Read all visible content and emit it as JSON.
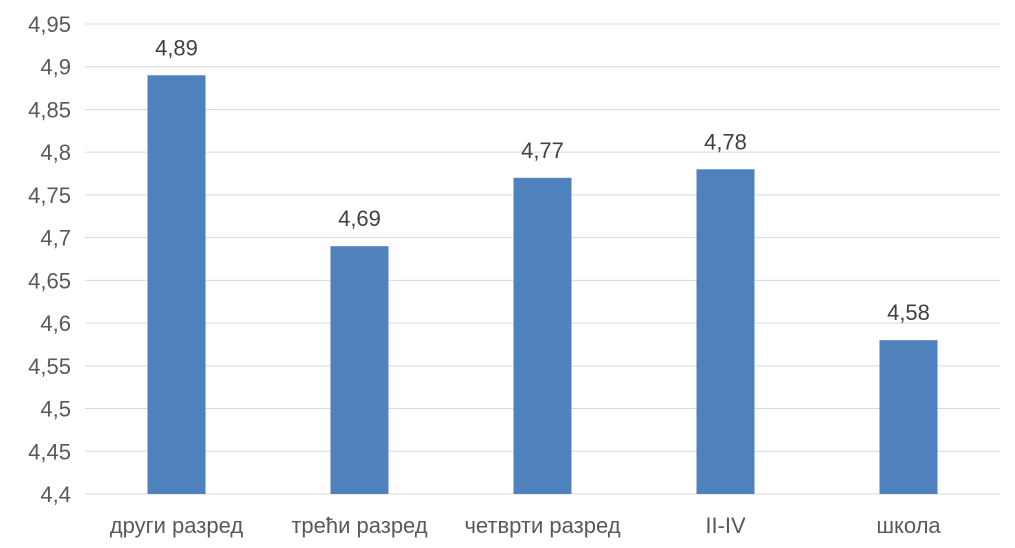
{
  "chart_data": {
    "type": "bar",
    "title": "",
    "xlabel": "",
    "ylabel": "",
    "categories": [
      "други разред",
      "трећи разред",
      "четврти разред",
      "II-IV",
      "школа"
    ],
    "values": [
      4.89,
      4.69,
      4.77,
      4.78,
      4.58
    ],
    "data_labels": [
      "4,89",
      "4,69",
      "4,77",
      "4,78",
      "4,58"
    ],
    "ylim": [
      4.4,
      4.95
    ],
    "yticks": [
      "4,4",
      "4,45",
      "4,5",
      "4,55",
      "4,6",
      "4,65",
      "4,7",
      "4,75",
      "4,8",
      "4,85",
      "4,9",
      "4,95"
    ],
    "ytick_values": [
      4.4,
      4.45,
      4.5,
      4.55,
      4.6,
      4.65,
      4.7,
      4.75,
      4.8,
      4.85,
      4.9,
      4.95
    ],
    "grid": true,
    "legend": "none",
    "bar_color": "#4f81bd"
  }
}
